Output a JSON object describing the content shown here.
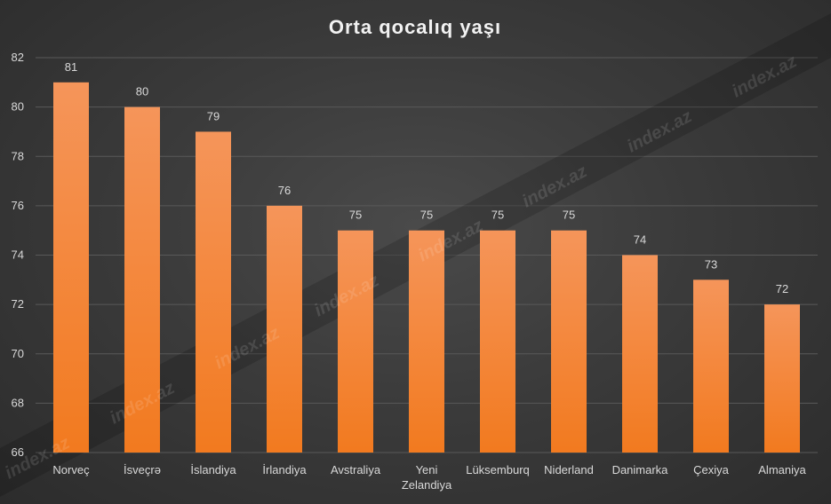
{
  "chart_data": {
    "type": "bar",
    "title": "Orta qocalıq yaşı",
    "xlabel": "",
    "ylabel": "",
    "categories": [
      "Norveç",
      "İsveçrə",
      "İslandiya",
      "İrlandiya",
      "Avstraliya",
      "Yeni Zelandiya",
      "Lüksemburq",
      "Niderland",
      "Danimarka",
      "Çexiya",
      "Almaniya"
    ],
    "values": [
      81,
      80,
      79,
      76,
      75,
      75,
      75,
      75,
      74,
      73,
      72
    ],
    "ylim": [
      66,
      82
    ],
    "yticks": [
      66,
      68,
      70,
      72,
      74,
      76,
      78,
      80,
      82
    ],
    "grid": true,
    "legend": "none",
    "data_labels": true,
    "bar_color_top": "#f5955a",
    "bar_color_bottom": "#f27a1f",
    "background_color": "#3b3b3b"
  },
  "watermark": {
    "text": "index.az"
  }
}
